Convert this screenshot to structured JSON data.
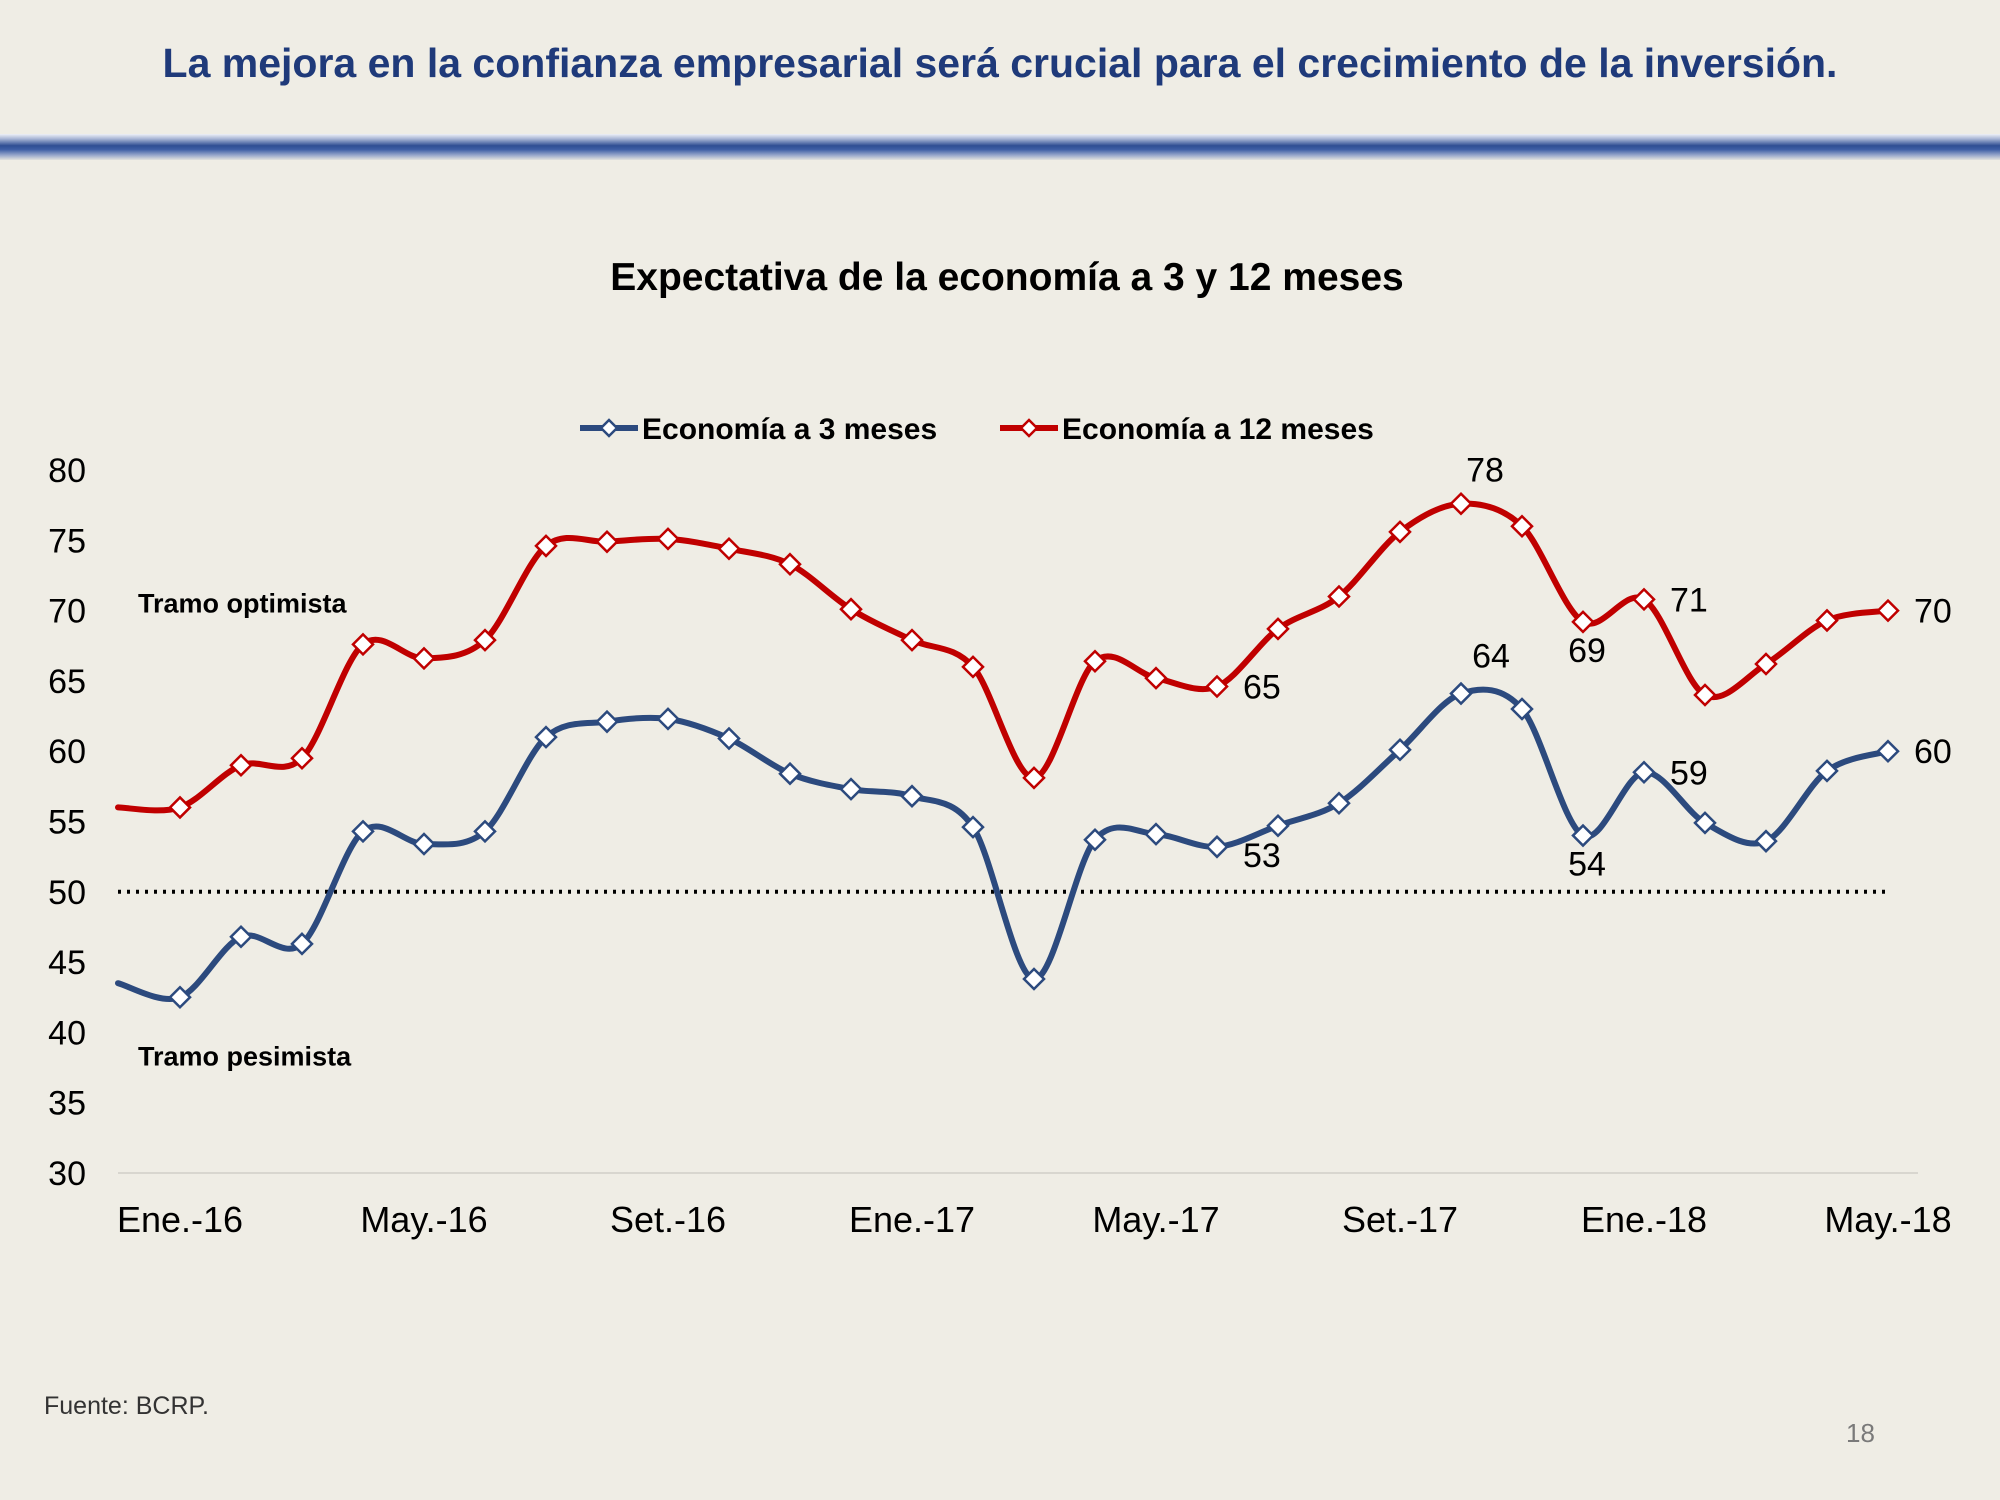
{
  "slide": {
    "title": "La mejora en la confianza empresarial será crucial para el crecimiento de la inversión.",
    "source": "Fuente: BCRP.",
    "page_number": "18"
  },
  "chart_data": {
    "type": "line",
    "title": "Expectativa de la economía a 3 y 12 meses",
    "xlabel": "",
    "ylabel": "",
    "ylim": [
      30,
      80
    ],
    "yticks": [
      "30",
      "35",
      "40",
      "45",
      "50",
      "55",
      "60",
      "65",
      "70",
      "75",
      "80"
    ],
    "x": [
      "Dic.-15",
      "Ene.-16",
      "Feb.-16",
      "Mar.-16",
      "Abr.-16",
      "May.-16",
      "Jun.-16",
      "Jul.-16",
      "Ago.-16",
      "Set.-16",
      "Oct.-16",
      "Nov.-16",
      "Dic.-16",
      "Ene.-17",
      "Feb.-17",
      "Mar.-17",
      "Abr.-17",
      "May.-17",
      "Jun.-17",
      "Jul.-17",
      "Ago.-17",
      "Set.-17",
      "Oct.-17",
      "Nov.-17",
      "Dic.-17",
      "Ene.-18",
      "Feb.-18",
      "Mar.-18",
      "Abr.-18",
      "May.-18"
    ],
    "x_tick_labels": [
      {
        "index": 1,
        "label": "Ene.-16"
      },
      {
        "index": 5,
        "label": "May.-16"
      },
      {
        "index": 9,
        "label": "Set.-16"
      },
      {
        "index": 13,
        "label": "Ene.-17"
      },
      {
        "index": 17,
        "label": "May.-17"
      },
      {
        "index": 21,
        "label": "Set.-17"
      },
      {
        "index": 25,
        "label": "Ene.-18"
      },
      {
        "index": 29,
        "label": "May.-18"
      }
    ],
    "series": [
      {
        "name": "Economía a 3 meses",
        "color": "#2c4a7e",
        "values": [
          43.5,
          42.5,
          46.8,
          46.3,
          54.3,
          53.4,
          54.3,
          61.0,
          62.1,
          62.3,
          60.9,
          58.4,
          57.3,
          56.8,
          54.6,
          43.8,
          53.7,
          54.1,
          53.2,
          54.7,
          56.3,
          60.1,
          64.1,
          63.0,
          54.0,
          58.5,
          54.9,
          53.6,
          58.6,
          60.0
        ],
        "marker_start": 1,
        "labels": [
          {
            "index": 18,
            "text": "53",
            "pos": "below-right"
          },
          {
            "index": 22,
            "text": "64",
            "pos": "above-right"
          },
          {
            "index": 24,
            "text": "54",
            "pos": "below"
          },
          {
            "index": 25,
            "text": "59",
            "pos": "right"
          },
          {
            "index": 29,
            "text": "60",
            "pos": "right"
          }
        ]
      },
      {
        "name": "Economía a 12 meses",
        "color": "#c00000",
        "values": [
          56.0,
          56.0,
          59.0,
          59.5,
          67.6,
          66.6,
          67.9,
          74.6,
          74.9,
          75.1,
          74.4,
          73.3,
          70.1,
          67.9,
          66.0,
          58.1,
          66.4,
          65.2,
          64.6,
          68.7,
          71.0,
          75.6,
          77.6,
          76.0,
          69.2,
          70.8,
          64.0,
          66.2,
          69.3,
          70.0
        ],
        "marker_start": 1,
        "labels": [
          {
            "index": 18,
            "text": "65",
            "pos": "right"
          },
          {
            "index": 22,
            "text": "78",
            "pos": "above"
          },
          {
            "index": 24,
            "text": "69",
            "pos": "below"
          },
          {
            "index": 25,
            "text": "71",
            "pos": "right"
          },
          {
            "index": 29,
            "text": "70",
            "pos": "right"
          }
        ]
      }
    ],
    "reference_line": {
      "value": 50,
      "style": "dotted",
      "color": "#000000"
    },
    "annotations": [
      {
        "text": "Tramo optimista",
        "y": 70.5
      },
      {
        "text": "Tramo pesimista",
        "y": 38.3
      }
    ],
    "legend": {
      "placement": "top"
    },
    "grid": false
  }
}
